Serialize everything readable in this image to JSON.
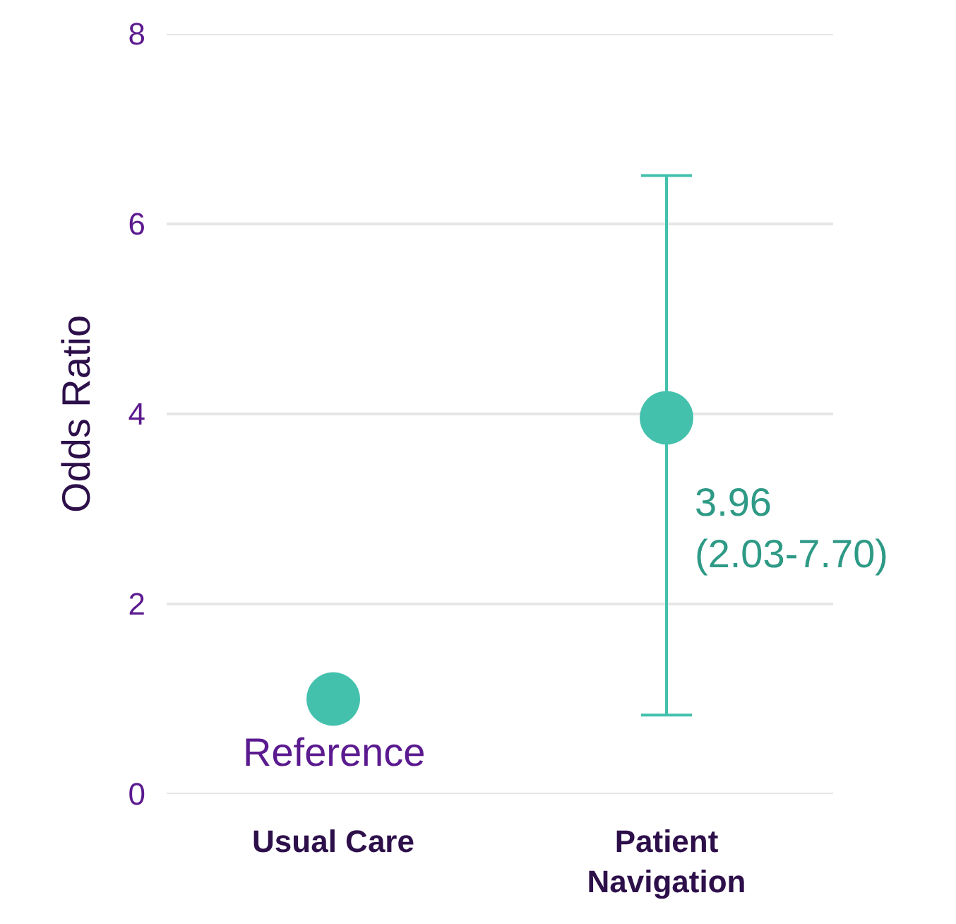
{
  "chart_data": {
    "type": "scatter",
    "ylabel": "Odds Ratio",
    "categories": [
      "Usual Care",
      "Patient Navigation"
    ],
    "series": [
      {
        "color": "#43c1ad",
        "values": [
          1.0,
          3.96
        ],
        "errors": [
          null,
          [
            0.83,
            6.51
          ]
        ]
      }
    ],
    "annotations": [
      "Reference",
      "3.96\n(2.03-7.70)"
    ],
    "ylim": [
      0,
      8
    ],
    "yticks": [
      0,
      2,
      4,
      6,
      8
    ],
    "grid": "y",
    "marker": "circle"
  }
}
